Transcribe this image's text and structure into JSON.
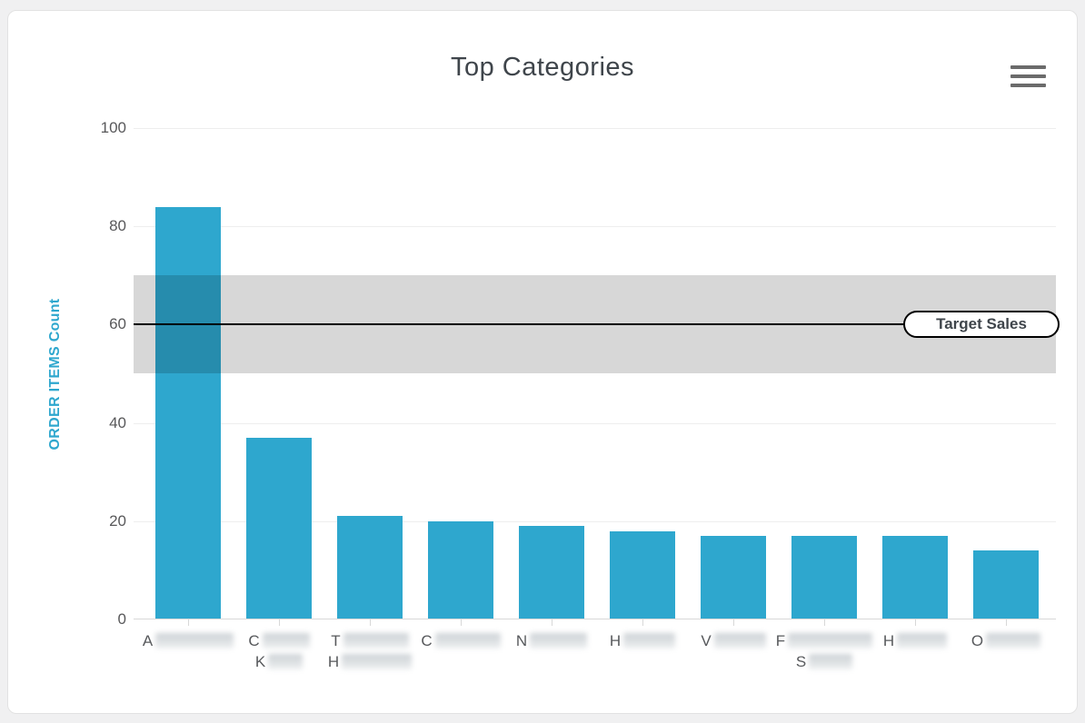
{
  "header": {
    "title": "Top Categories",
    "menu_icon": "hamburger-menu-icon"
  },
  "chart_data": {
    "type": "bar",
    "title": "Top Categories",
    "xlabel": "",
    "ylabel": "ORDER ITEMS Count",
    "ylim": [
      0,
      100
    ],
    "yticks": [
      0,
      20,
      40,
      60,
      80,
      100
    ],
    "grid": true,
    "legend": false,
    "categories": [
      {
        "line1": "A",
        "line2": ""
      },
      {
        "line1": "C",
        "line2": "K"
      },
      {
        "line1": "T",
        "line2": "H"
      },
      {
        "line1": "C",
        "line2": ""
      },
      {
        "line1": "N",
        "line2": ""
      },
      {
        "line1": "H",
        "line2": ""
      },
      {
        "line1": "V",
        "line2": ""
      },
      {
        "line1": "F",
        "line2": "S"
      },
      {
        "line1": "H",
        "line2": ""
      },
      {
        "line1": "O",
        "line2": ""
      }
    ],
    "categories_redacted": true,
    "redaction_widths_line1": [
      86,
      52,
      72,
      72,
      63,
      57,
      57,
      93,
      55,
      60
    ],
    "redaction_widths_line2": [
      0,
      38,
      77,
      0,
      0,
      0,
      0,
      48,
      0,
      0
    ],
    "values": [
      84,
      37,
      21,
      20,
      19,
      18,
      17,
      17,
      17,
      14
    ],
    "plot_band": {
      "from": 50,
      "to": 70,
      "color": "rgba(0,0,0,0.155)"
    },
    "plot_line": {
      "value": 60,
      "width": 2,
      "color": "#000000",
      "label": "Target Sales"
    },
    "colors": {
      "bar": "#2ea7ce",
      "axis_title": "#2ea7ce",
      "tick_label": "#58585a",
      "title": "#3f454b",
      "grid": "#eeeeee",
      "axis_line": "#d8d8d8",
      "band_over_white": "#d7d7d7"
    }
  }
}
